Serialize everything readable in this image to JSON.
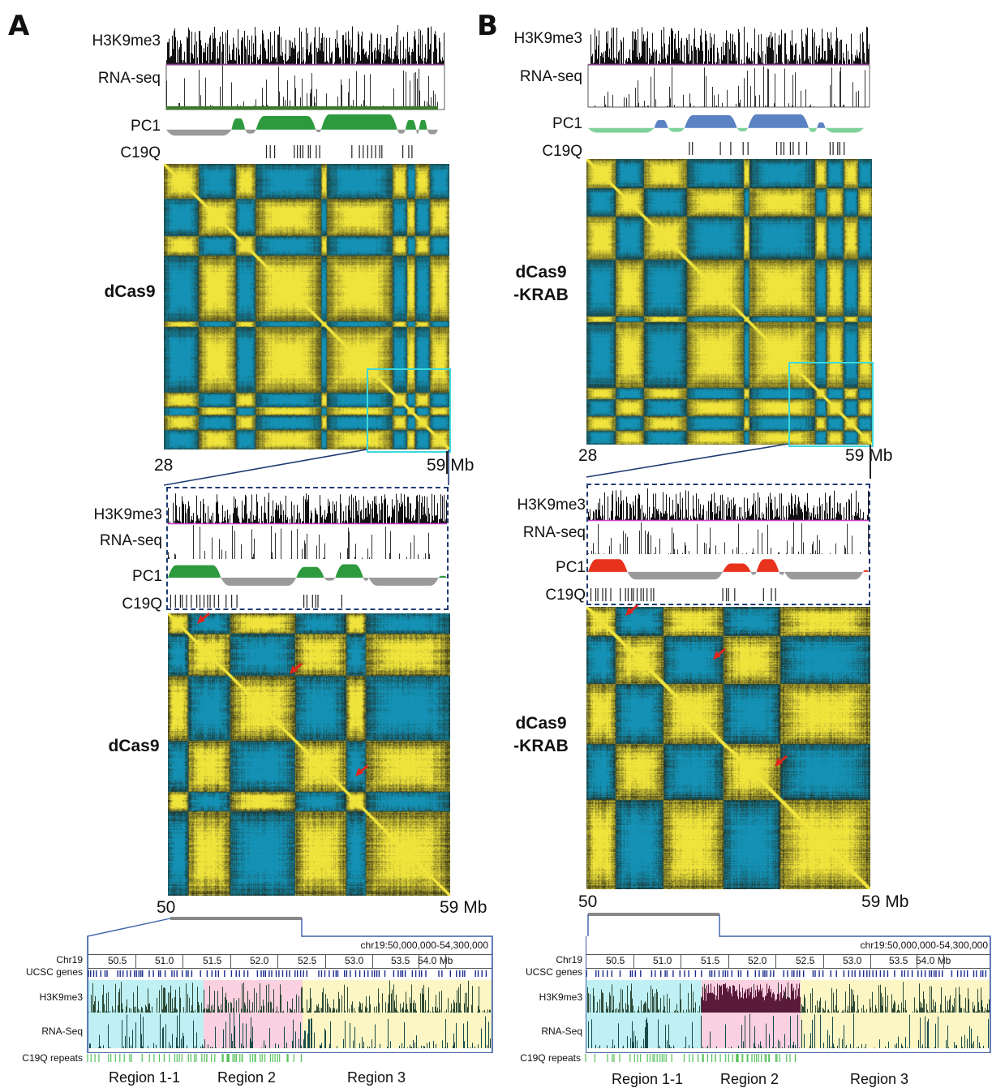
{
  "panels": [
    {
      "letter": "A",
      "tracks": [
        "H3K9me3",
        "RNA-seq",
        "PC1",
        "C19Q"
      ],
      "condition_lines": [
        "dCas9"
      ],
      "full_axis": {
        "start": "28",
        "end": "59",
        "unit": "Mb"
      },
      "zoom_condition_lines": [
        "dCas9"
      ],
      "zoom_axis": {
        "start": "50",
        "end": "59",
        "unit": "Mb"
      },
      "pc1_colors": {
        "positive": "#2e9a3e",
        "negative": "#9a9a9a"
      },
      "zoom_pc1_colors": {
        "positive": "#2e9a3e",
        "negative": "#9a9a9a"
      },
      "browser": {
        "coords": "chr19:50,000,000-54,300,000",
        "row_labels": [
          "Chr19",
          "UCSC genes",
          "H3K9me3",
          "RNA-Seq",
          "C19Q repeats"
        ],
        "ticks": [
          "50.5",
          "51.0",
          "51.5",
          "52.0",
          "52.5",
          "53.0",
          "53.5",
          "54.0 Mb"
        ],
        "regions": [
          "Region 1-1",
          "Region 2",
          "Region 3"
        ],
        "region_colors": [
          "#bff0f4",
          "#fbd0e0",
          "#fbf6c4"
        ]
      }
    },
    {
      "letter": "B",
      "tracks": [
        "H3K9me3",
        "RNA-seq",
        "PC1",
        "C19Q"
      ],
      "condition_lines": [
        "dCas9",
        "-KRAB"
      ],
      "full_axis": {
        "start": "28",
        "end": "59",
        "unit": "Mb"
      },
      "zoom_condition_lines": [
        "dCas9",
        "-KRAB"
      ],
      "zoom_axis": {
        "start": "50",
        "end": "59",
        "unit": "Mb"
      },
      "pc1_colors": {
        "positive": "#5b82c2",
        "negative": "#7fd19a"
      },
      "zoom_pc1_colors": {
        "positive": "#e8321c",
        "negative": "#9a9a9a"
      },
      "browser": {
        "coords": "chr19:50,000,000-54,300,000",
        "row_labels": [
          "Chr19",
          "UCSC genes",
          "H3K9me3",
          "RNA-Seq",
          "C19Q repeats"
        ],
        "ticks": [
          "50.5",
          "51.0",
          "51.5",
          "52.0",
          "52.5",
          "53.0",
          "53.5",
          "54.0 Mb"
        ],
        "regions": [
          "Region 1-1",
          "Region 2",
          "Region 3"
        ],
        "region_colors": [
          "#bff0f4",
          "#fbd0e0",
          "#fbf6c4"
        ]
      }
    }
  ],
  "colors": {
    "heatmap_yellow": "#ece24a",
    "heatmap_blue": "#2a8fb0",
    "zoom_box": "#3cd8dc",
    "dash_box": "#1f3b73",
    "arrow": "#e0251b",
    "c19q_repeat": "#55c05a"
  }
}
